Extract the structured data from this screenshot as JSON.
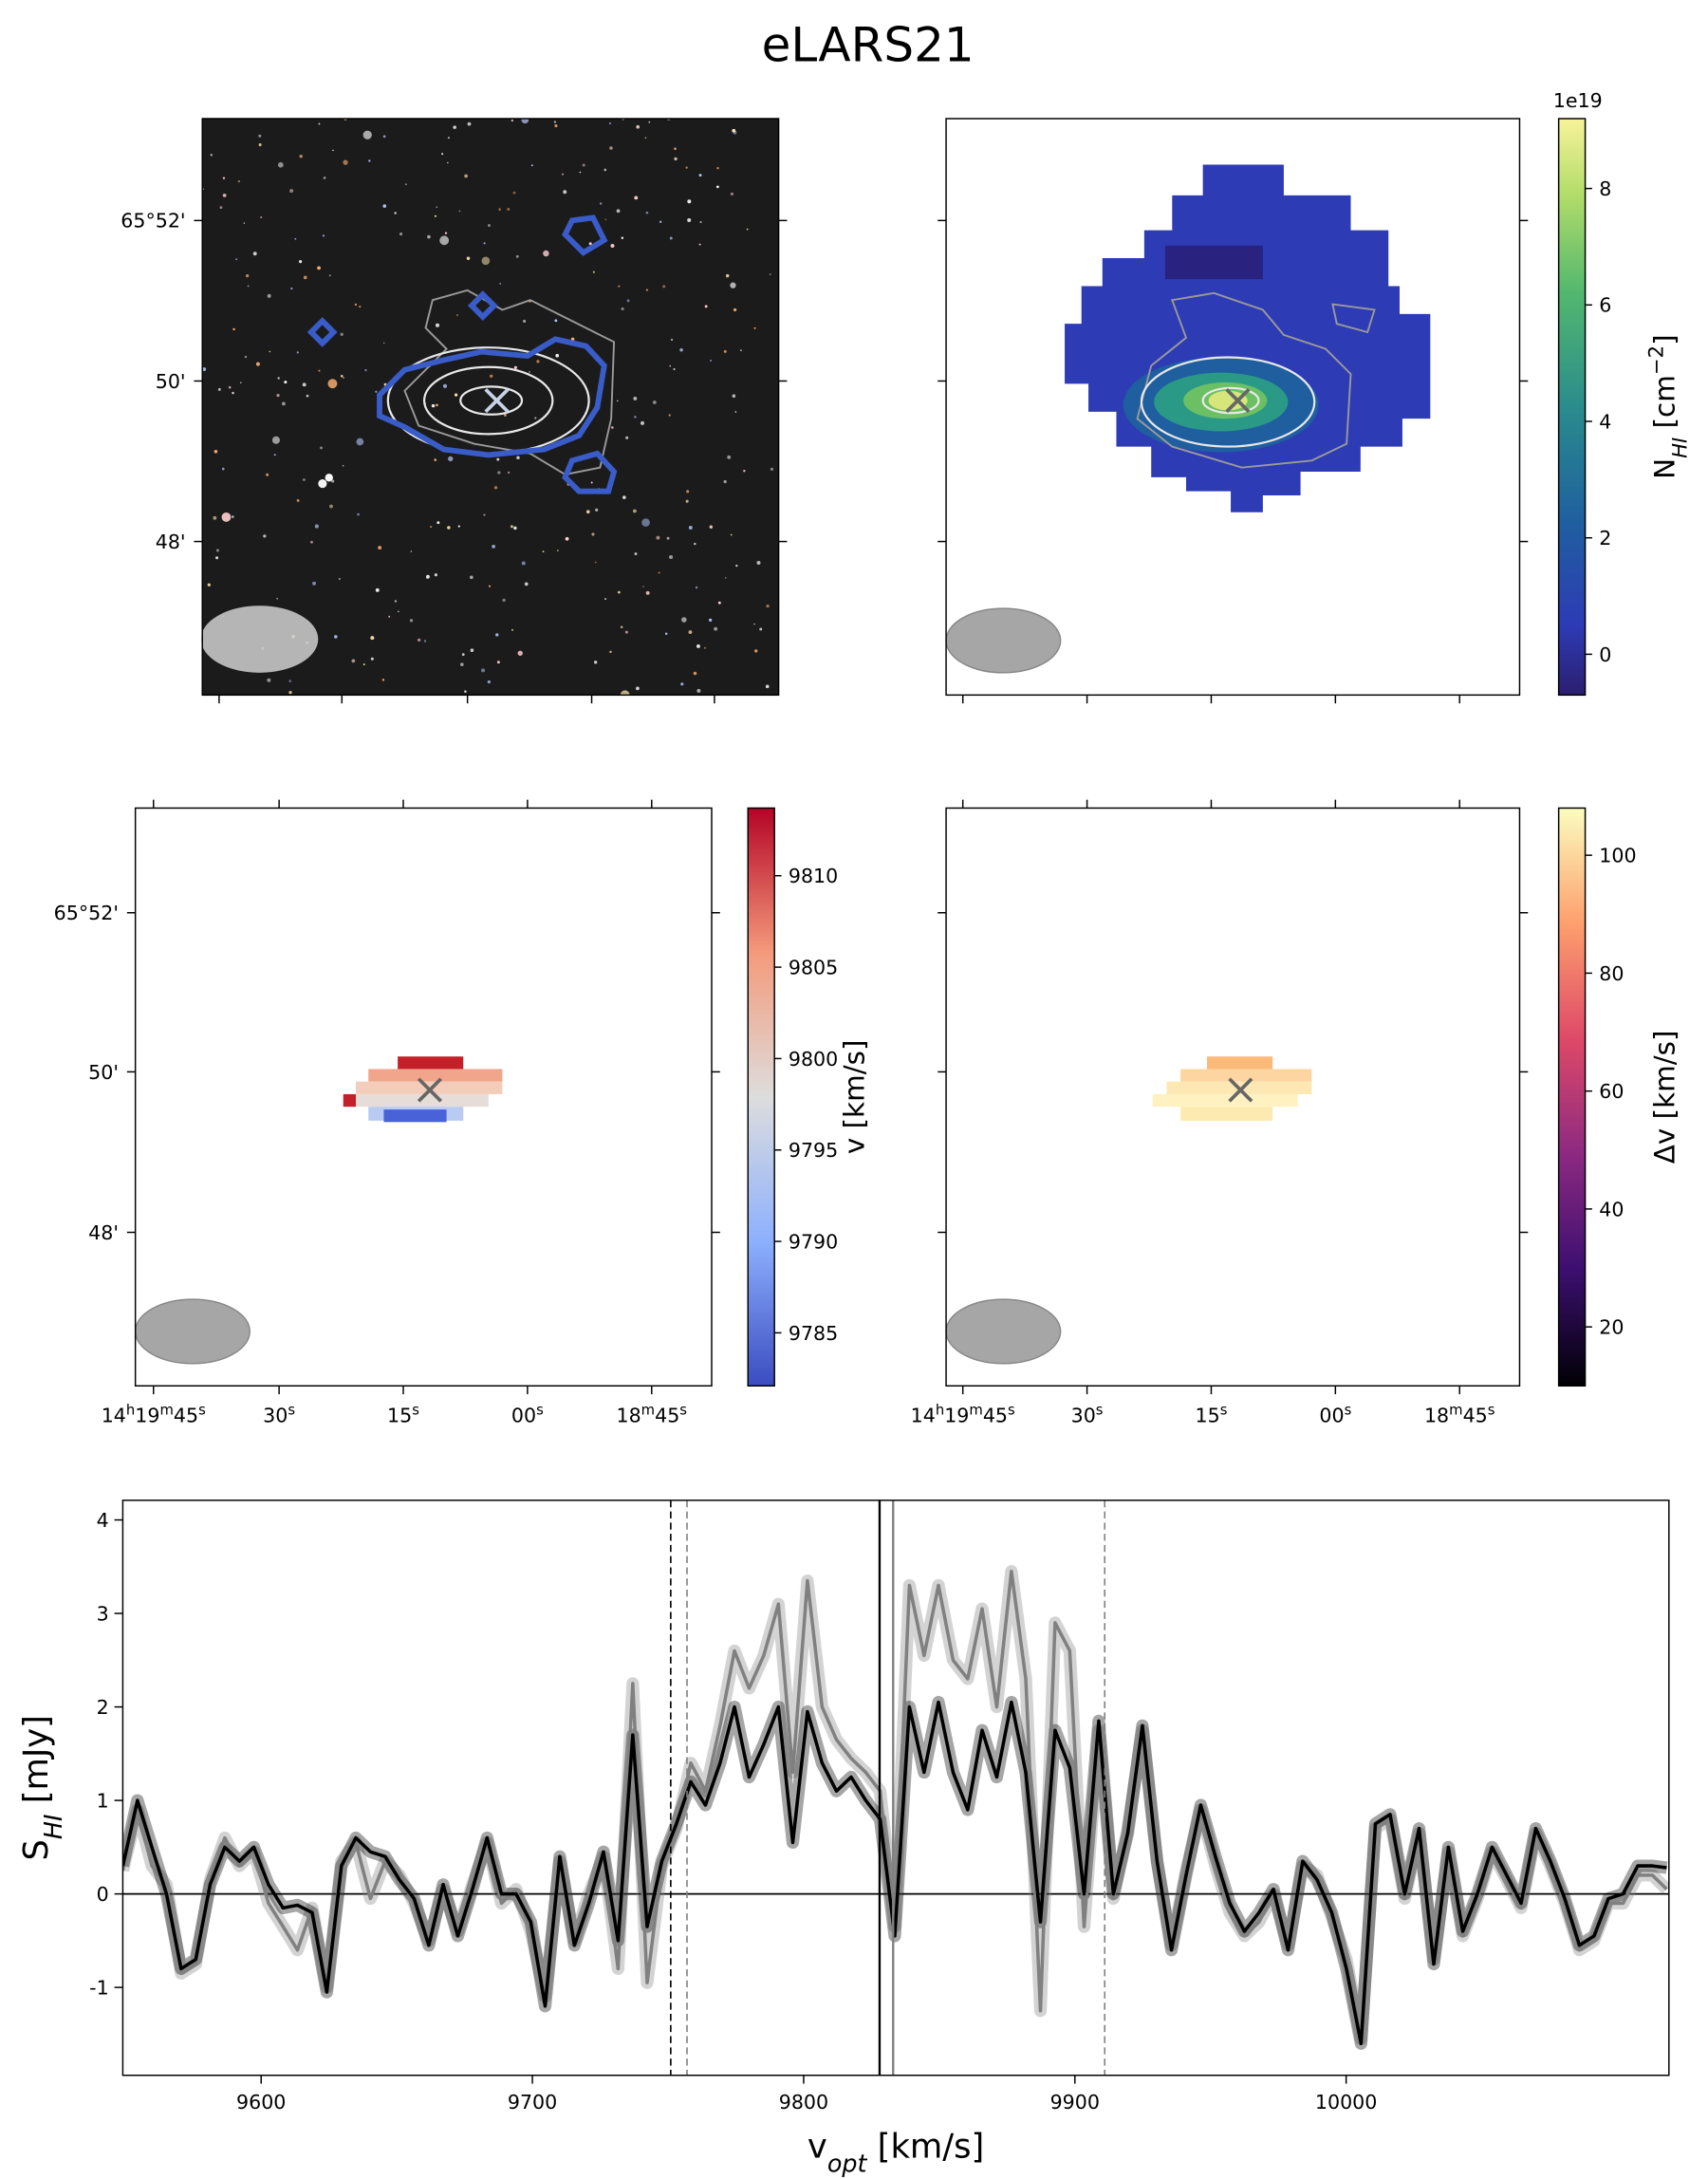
{
  "title": "eLARS21",
  "chart_data": [
    {
      "type": "image",
      "yticklabels": [
        "65°52'",
        "50'",
        "48'"
      ]
    },
    {
      "type": "image",
      "colorbar": {
        "label": [
          {
            "text": "N"
          },
          {
            "text": "HI",
            "script": "sub"
          },
          {
            "text": " [cm"
          },
          {
            "text": "−2",
            "script": "sup"
          },
          {
            "text": "]"
          }
        ],
        "offset": "1e19",
        "clim": [
          -0.7,
          9.2
        ],
        "ticks": [
          0,
          2,
          4,
          6,
          8
        ],
        "colormap": "viridis"
      }
    },
    {
      "type": "image",
      "yticklabels": [
        "65°52'",
        "50'",
        "48'"
      ],
      "xticklabels": [
        [
          {
            "text": "14"
          },
          {
            "text": "h",
            "script": "sup"
          },
          {
            "text": "19"
          },
          {
            "text": "m",
            "script": "sup"
          },
          {
            "text": "45"
          },
          {
            "text": "s",
            "script": "sup"
          }
        ],
        [
          {
            "text": "30"
          },
          {
            "text": "s",
            "script": "sup"
          }
        ],
        [
          {
            "text": "15"
          },
          {
            "text": "s",
            "script": "sup"
          }
        ],
        [
          {
            "text": "00"
          },
          {
            "text": "s",
            "script": "sup"
          }
        ],
        [
          {
            "text": "18"
          },
          {
            "text": "m",
            "script": "sup"
          },
          {
            "text": "45"
          },
          {
            "text": "s",
            "script": "sup"
          }
        ]
      ],
      "colorbar": {
        "label": [
          {
            "text": "v [km/s]"
          }
        ],
        "clim": [
          9782.1,
          9813.7
        ],
        "ticks": [
          9785,
          9790,
          9795,
          9800,
          9805,
          9810
        ],
        "colormap": "coolwarm"
      }
    },
    {
      "type": "image",
      "xticklabels": [
        [
          {
            "text": "14"
          },
          {
            "text": "h",
            "script": "sup"
          },
          {
            "text": "19"
          },
          {
            "text": "m",
            "script": "sup"
          },
          {
            "text": "45"
          },
          {
            "text": "s",
            "script": "sup"
          }
        ],
        [
          {
            "text": "30"
          },
          {
            "text": "s",
            "script": "sup"
          }
        ],
        [
          {
            "text": "15"
          },
          {
            "text": "s",
            "script": "sup"
          }
        ],
        [
          {
            "text": "00"
          },
          {
            "text": "s",
            "script": "sup"
          }
        ],
        [
          {
            "text": "18"
          },
          {
            "text": "m",
            "script": "sup"
          },
          {
            "text": "45"
          },
          {
            "text": "s",
            "script": "sup"
          }
        ]
      ],
      "colorbar": {
        "label": [
          {
            "text": "Δv [km/s]"
          }
        ],
        "clim": [
          10,
          108
        ],
        "ticks": [
          20,
          40,
          60,
          80,
          100
        ],
        "colormap": "magma"
      }
    },
    {
      "type": "line",
      "xlabel": [
        {
          "text": "v"
        },
        {
          "text": "opt",
          "script": "sub"
        },
        {
          "text": " [km/s]"
        }
      ],
      "ylabel": [
        {
          "text": "S"
        },
        {
          "text": "HI",
          "script": "sub"
        },
        {
          "text": " [mJy]"
        }
      ],
      "xlim": [
        9549,
        10119
      ],
      "ylim": [
        -1.94,
        4.21
      ],
      "xticks": [
        9600,
        9700,
        9800,
        9900,
        10000
      ],
      "yticks": [
        -1,
        0,
        1,
        2,
        3,
        4
      ],
      "x": [
        9549.0,
        9554.4,
        9559.7,
        9565.1,
        9570.5,
        9575.9,
        9581.2,
        9586.6,
        9592.0,
        9597.3,
        9602.7,
        9608.1,
        9613.4,
        9618.8,
        9624.2,
        9629.6,
        9634.9,
        9640.3,
        9645.7,
        9651.0,
        9656.4,
        9661.8,
        9667.1,
        9672.5,
        9677.9,
        9683.3,
        9688.6,
        9694.0,
        9699.4,
        9704.7,
        9710.1,
        9715.5,
        9720.8,
        9726.2,
        9731.6,
        9737.0,
        9742.3,
        9747.7,
        9753.1,
        9758.4,
        9763.8,
        9769.2,
        9774.5,
        9779.9,
        9785.3,
        9790.7,
        9796.0,
        9801.4,
        9806.8,
        9812.1,
        9817.5,
        9822.9,
        9828.2,
        9833.6,
        9839.0,
        9844.4,
        9849.7,
        9855.1,
        9860.5,
        9865.8,
        9871.2,
        9876.6,
        9881.9,
        9887.3,
        9892.7,
        9898.1,
        9903.4,
        9908.8,
        9914.2,
        9919.5,
        9924.9,
        9930.3,
        9935.6,
        9941.0,
        9946.4,
        9951.8,
        9957.1,
        9962.5,
        9967.9,
        9973.2,
        9978.6,
        9984.0,
        9989.3,
        9994.7,
        10000.1,
        10005.5,
        10010.8,
        10016.2,
        10021.6,
        10026.9,
        10032.3,
        10037.7,
        10043.0,
        10048.4,
        10053.8,
        10059.2,
        10064.5,
        10069.9,
        10075.3,
        10080.6,
        10086.0,
        10091.4,
        10096.7,
        10102.1,
        10107.5,
        10112.9,
        10118.2
      ],
      "series": [
        {
          "color": "#808080",
          "values": [
            0.25,
            0.9,
            0.3,
            0.1,
            -0.85,
            -0.75,
            0.15,
            0.6,
            0.3,
            0.45,
            -0.1,
            -0.35,
            -0.6,
            -0.15,
            -1.0,
            0.35,
            0.55,
            -0.05,
            0.35,
            0.2,
            -0.1,
            -0.5,
            0.05,
            -0.4,
            0.1,
            0.55,
            -0.1,
            0.05,
            -0.4,
            -1.1,
            0.35,
            -0.5,
            0.0,
            0.4,
            -0.8,
            2.25,
            -0.95,
            0.3,
            0.7,
            1.4,
            1.1,
            1.8,
            2.6,
            2.2,
            2.55,
            3.1,
            1.3,
            3.35,
            2.0,
            1.65,
            1.45,
            1.3,
            1.1,
            -0.35,
            3.3,
            2.55,
            3.3,
            2.5,
            2.3,
            3.05,
            2.0,
            3.45,
            2.3,
            -1.25,
            2.9,
            2.6,
            -0.35,
            1.75,
            -0.05,
            0.7,
            1.75,
            0.35,
            -0.55,
            0.25,
            0.9,
            0.3,
            -0.2,
            -0.45,
            -0.3,
            0.0,
            -0.55,
            0.3,
            0.2,
            -0.25,
            -0.7,
            -1.55,
            0.7,
            0.8,
            -0.05,
            0.65,
            -0.7,
            0.45,
            -0.45,
            -0.05,
            0.45,
            0.15,
            -0.15,
            0.65,
            0.3,
            -0.1,
            -0.6,
            -0.5,
            -0.1,
            -0.1,
            0.2,
            0.2,
            0.05
          ]
        },
        {
          "color": "#000000",
          "values": [
            0.3,
            1.0,
            0.5,
            0.0,
            -0.8,
            -0.7,
            0.1,
            0.5,
            0.35,
            0.5,
            0.1,
            -0.15,
            -0.12,
            -0.2,
            -1.05,
            0.3,
            0.6,
            0.45,
            0.4,
            0.15,
            -0.05,
            -0.55,
            0.1,
            -0.45,
            0.05,
            0.6,
            0.0,
            0.0,
            -0.3,
            -1.2,
            0.4,
            -0.55,
            -0.1,
            0.45,
            -0.5,
            1.7,
            -0.35,
            0.35,
            0.75,
            1.2,
            0.95,
            1.4,
            2.0,
            1.25,
            1.6,
            2.0,
            0.55,
            1.95,
            1.4,
            1.1,
            1.25,
            1.0,
            0.8,
            -0.45,
            2.0,
            1.3,
            2.05,
            1.3,
            0.9,
            1.75,
            1.25,
            2.05,
            1.3,
            -0.3,
            1.75,
            1.35,
            0.0,
            1.85,
            0.0,
            0.65,
            1.8,
            0.35,
            -0.6,
            0.2,
            0.95,
            0.4,
            -0.1,
            -0.4,
            -0.2,
            0.05,
            -0.6,
            0.35,
            0.15,
            -0.2,
            -0.8,
            -1.6,
            0.75,
            0.85,
            0.0,
            0.7,
            -0.75,
            0.5,
            -0.4,
            0.0,
            0.5,
            0.2,
            -0.1,
            0.7,
            0.35,
            -0.05,
            -0.55,
            -0.45,
            -0.05,
            0.0,
            0.3,
            0.3,
            0.28
          ]
        }
      ],
      "vlines": [
        {
          "x": 9751,
          "color": "#000000",
          "linestyle": "dashed"
        },
        {
          "x": 9757,
          "color": "#808080",
          "linestyle": "dashed"
        },
        {
          "x": 9828,
          "color": "#000000",
          "linestyle": "solid"
        },
        {
          "x": 9833,
          "color": "#808080",
          "linestyle": "solid"
        },
        {
          "x": 9911,
          "color": "#808080",
          "linestyle": "dashed"
        }
      ],
      "hlines": [
        {
          "y": 0,
          "color": "#000000",
          "linestyle": "solid"
        }
      ]
    }
  ]
}
